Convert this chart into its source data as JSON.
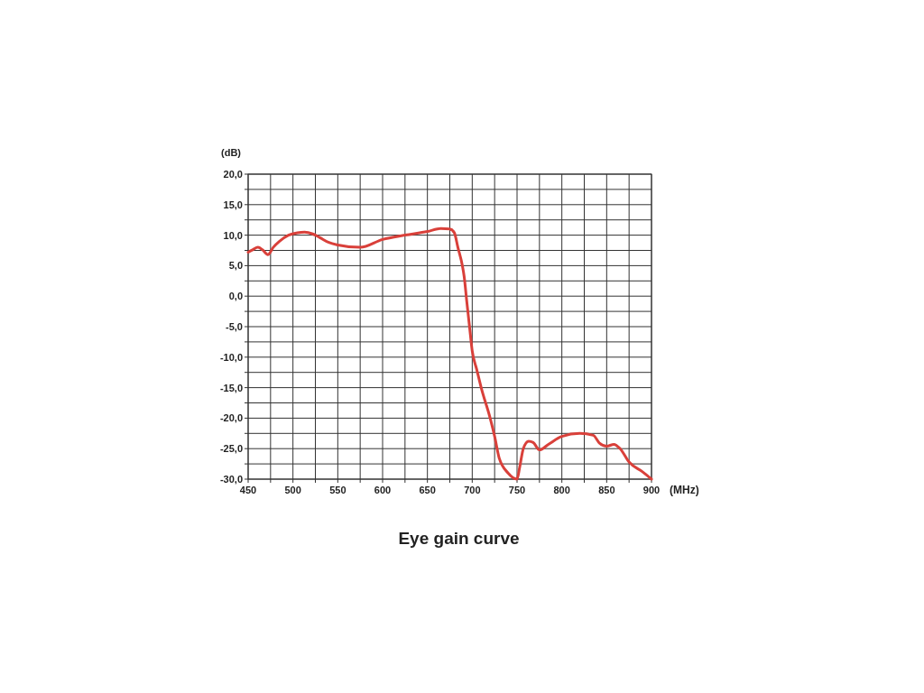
{
  "chart_data": {
    "type": "line",
    "title": "Eye gain curve",
    "xlabel": "(MHz)",
    "ylabel": "(dB)",
    "x": [
      450,
      455,
      461,
      466,
      472,
      478,
      485,
      495,
      505,
      513,
      522,
      530,
      540,
      550,
      575,
      600,
      625,
      650,
      665,
      675,
      680,
      684,
      689,
      691,
      694,
      697,
      700,
      705,
      710,
      720,
      725,
      730,
      740,
      750,
      753,
      757,
      763,
      768,
      775,
      785,
      800,
      820,
      835,
      842,
      850,
      858,
      865,
      875,
      890,
      900
    ],
    "series": [
      {
        "color": "#d9403a",
        "values": [
          7.2,
          7.6,
          8.0,
          7.6,
          6.8,
          8.0,
          9.0,
          10.0,
          10.4,
          10.5,
          10.2,
          9.6,
          8.8,
          8.4,
          8.0,
          9.3,
          10.0,
          10.6,
          11.1,
          11.0,
          10.4,
          8.0,
          5.0,
          3.2,
          -1,
          -5,
          -9,
          -12,
          -15,
          -20,
          -23,
          -26.5,
          -29,
          -30,
          -28,
          -25,
          -23.8,
          -24,
          -25.2,
          -24.3,
          -23,
          -22.5,
          -22.8,
          -24.1,
          -24.6,
          -24.3,
          -25,
          -27.2,
          -28.8,
          -30
        ]
      }
    ],
    "xlim": [
      450,
      900
    ],
    "ylim": [
      -30,
      20
    ],
    "xticks": [
      450,
      {
        "value": 475,
        "label": null
      },
      500,
      {
        "value": 525,
        "label": null
      },
      550,
      {
        "value": 575,
        "label": null
      },
      600,
      {
        "value": 625,
        "label": null
      },
      650,
      {
        "value": 675,
        "label": null
      },
      700,
      {
        "value": 725,
        "label": null
      },
      750,
      {
        "value": 775,
        "label": null
      },
      800,
      {
        "value": 825,
        "label": null
      },
      850,
      {
        "value": 875,
        "label": null
      },
      900
    ],
    "yticks": [
      {
        "value": -30,
        "label": "-30,0"
      },
      {
        "value": -27.5,
        "label": null
      },
      {
        "value": -25,
        "label": "-25,0"
      },
      {
        "value": -22.5,
        "label": null
      },
      {
        "value": -20,
        "label": "-20,0"
      },
      {
        "value": -17.5,
        "label": null
      },
      {
        "value": -15,
        "label": "-15,0"
      },
      {
        "value": -12.5,
        "label": null
      },
      {
        "value": -10,
        "label": "-10,0"
      },
      {
        "value": -7.5,
        "label": null
      },
      {
        "value": -5,
        "label": "-5,0"
      },
      {
        "value": -2.5,
        "label": null
      },
      {
        "value": 0,
        "label": "0,0"
      },
      {
        "value": 2.5,
        "label": null
      },
      {
        "value": 5,
        "label": "5,0"
      },
      {
        "value": 7.5,
        "label": null
      },
      {
        "value": 10,
        "label": "10,0"
      },
      {
        "value": 12.5,
        "label": null
      },
      {
        "value": 15,
        "label": "15,0"
      },
      {
        "value": 17.5,
        "label": null
      },
      {
        "value": 20,
        "label": "20,0"
      }
    ],
    "grid": true,
    "marker": "none",
    "line_style": "solid"
  }
}
